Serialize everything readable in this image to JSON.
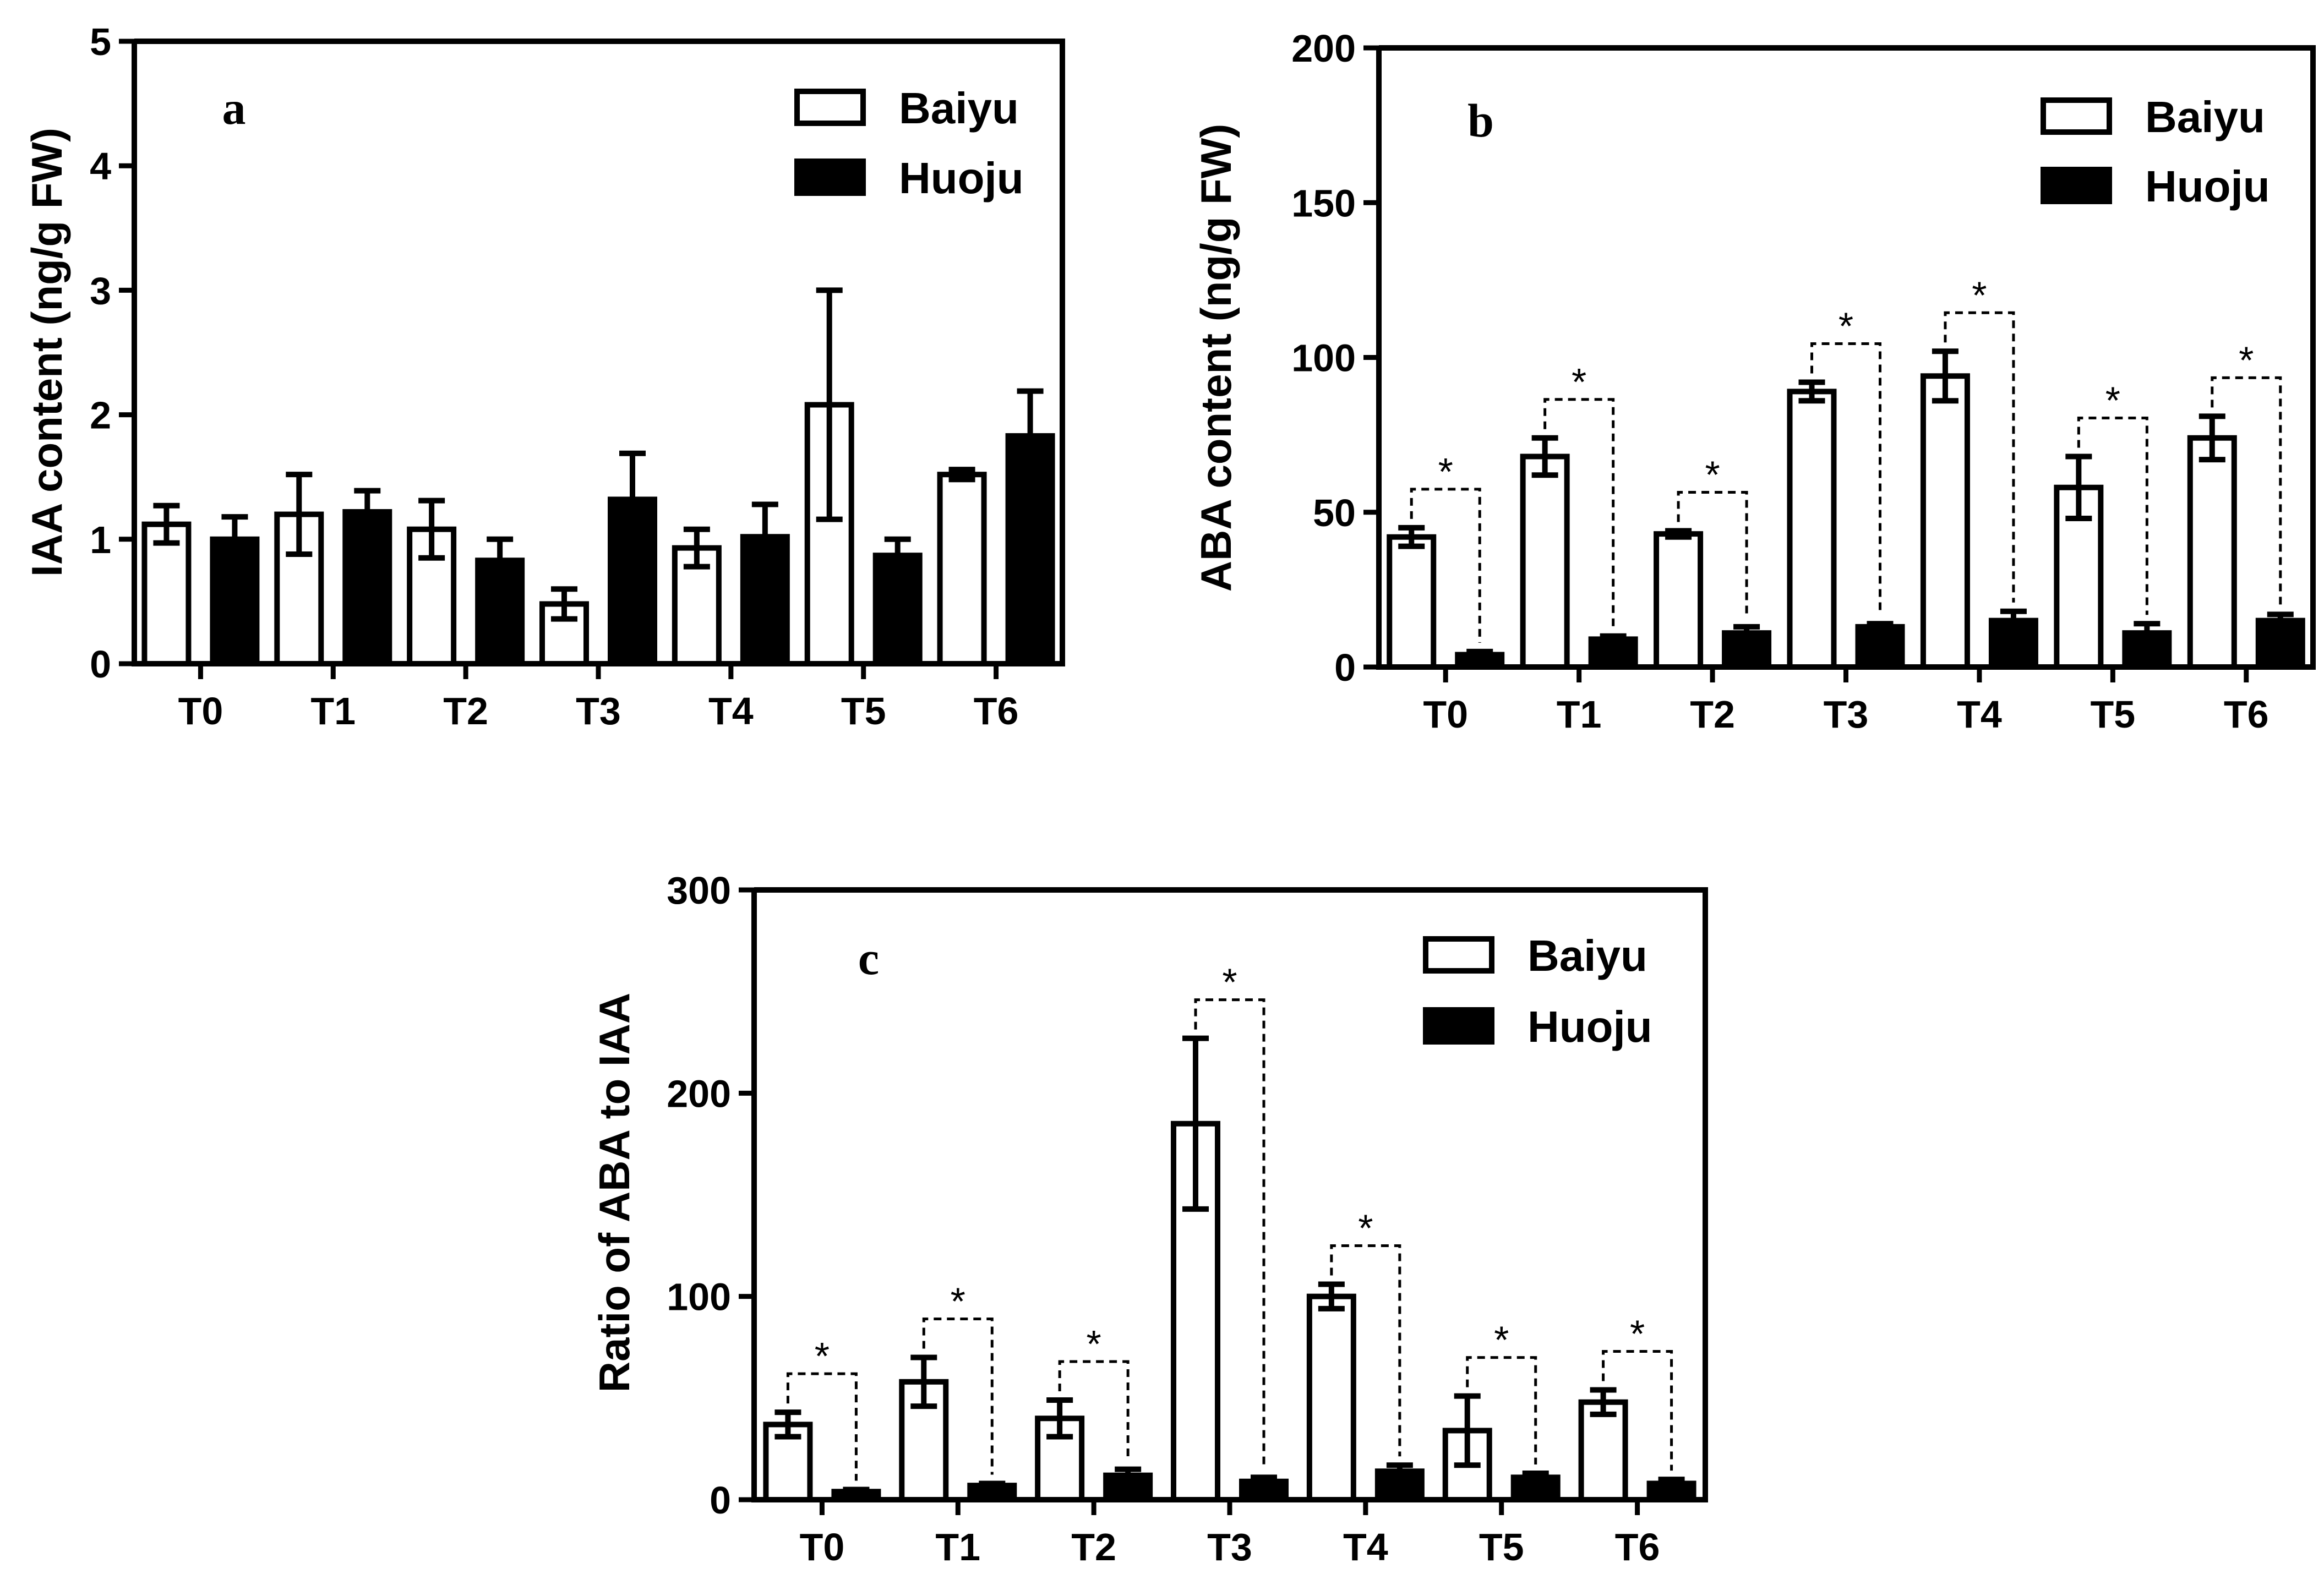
{
  "colors": {
    "baiyu": "#ffffff",
    "huoju": "#000000",
    "axis": "#000000"
  },
  "chart_data": [
    {
      "id": "a",
      "type": "bar",
      "panel_label": "a",
      "ylabel": "IAA content (ng/g FW)",
      "xlabel": "",
      "ylim": [
        0,
        5
      ],
      "yticks": [
        0,
        1,
        2,
        3,
        4,
        5
      ],
      "categories": [
        "T0",
        "T1",
        "T2",
        "T3",
        "T4",
        "T5",
        "T6"
      ],
      "legend_position": "top-right",
      "series": [
        {
          "name": "Baiyu",
          "style": "open",
          "values": [
            1.12,
            1.2,
            1.08,
            0.48,
            0.93,
            2.08,
            1.52
          ],
          "errors": [
            0.15,
            0.32,
            0.23,
            0.12,
            0.15,
            0.92,
            0.04
          ]
        },
        {
          "name": "Huoju",
          "style": "solid",
          "values": [
            1.0,
            1.22,
            0.83,
            1.32,
            1.02,
            0.87,
            1.83
          ],
          "errors": [
            0.18,
            0.17,
            0.17,
            0.37,
            0.26,
            0.13,
            0.36
          ]
        }
      ],
      "significant": [
        false,
        false,
        false,
        false,
        false,
        false,
        false
      ]
    },
    {
      "id": "b",
      "type": "bar",
      "panel_label": "b",
      "ylabel": "ABA content (ng/g FW)",
      "xlabel": "",
      "ylim": [
        0,
        200
      ],
      "yticks": [
        0,
        50,
        100,
        150,
        200
      ],
      "categories": [
        "T0",
        "T1",
        "T2",
        "T3",
        "T4",
        "T5",
        "T6"
      ],
      "legend_position": "top-right",
      "series": [
        {
          "name": "Baiyu",
          "style": "open",
          "values": [
            42,
            68,
            43,
            89,
            94,
            58,
            74
          ],
          "errors": [
            3,
            6,
            1,
            3,
            8,
            10,
            7
          ]
        },
        {
          "name": "Huoju",
          "style": "solid",
          "values": [
            4,
            9,
            11,
            13,
            15,
            11,
            15
          ],
          "errors": [
            1,
            1,
            2,
            1,
            3,
            3,
            2
          ]
        }
      ],
      "significant": [
        true,
        true,
        true,
        true,
        true,
        true,
        true
      ],
      "significance_marker": "*"
    },
    {
      "id": "c",
      "type": "bar",
      "panel_label": "c",
      "ylabel": "Ratio of ABA to IAA",
      "xlabel": "",
      "ylim": [
        0,
        300
      ],
      "yticks": [
        0,
        100,
        200,
        300
      ],
      "categories": [
        "T0",
        "T1",
        "T2",
        "T3",
        "T4",
        "T5",
        "T6"
      ],
      "legend_position": "top-right",
      "series": [
        {
          "name": "Baiyu",
          "style": "open",
          "values": [
            37,
            58,
            40,
            185,
            100,
            34,
            48
          ],
          "errors": [
            6,
            12,
            9,
            42,
            6,
            17,
            6
          ]
        },
        {
          "name": "Huoju",
          "style": "solid",
          "values": [
            4,
            7,
            12,
            9,
            14,
            11,
            8
          ],
          "errors": [
            1,
            1,
            3,
            2,
            3,
            2,
            2
          ]
        }
      ],
      "significant": [
        true,
        true,
        true,
        true,
        true,
        true,
        true
      ],
      "significance_marker": "*"
    }
  ]
}
